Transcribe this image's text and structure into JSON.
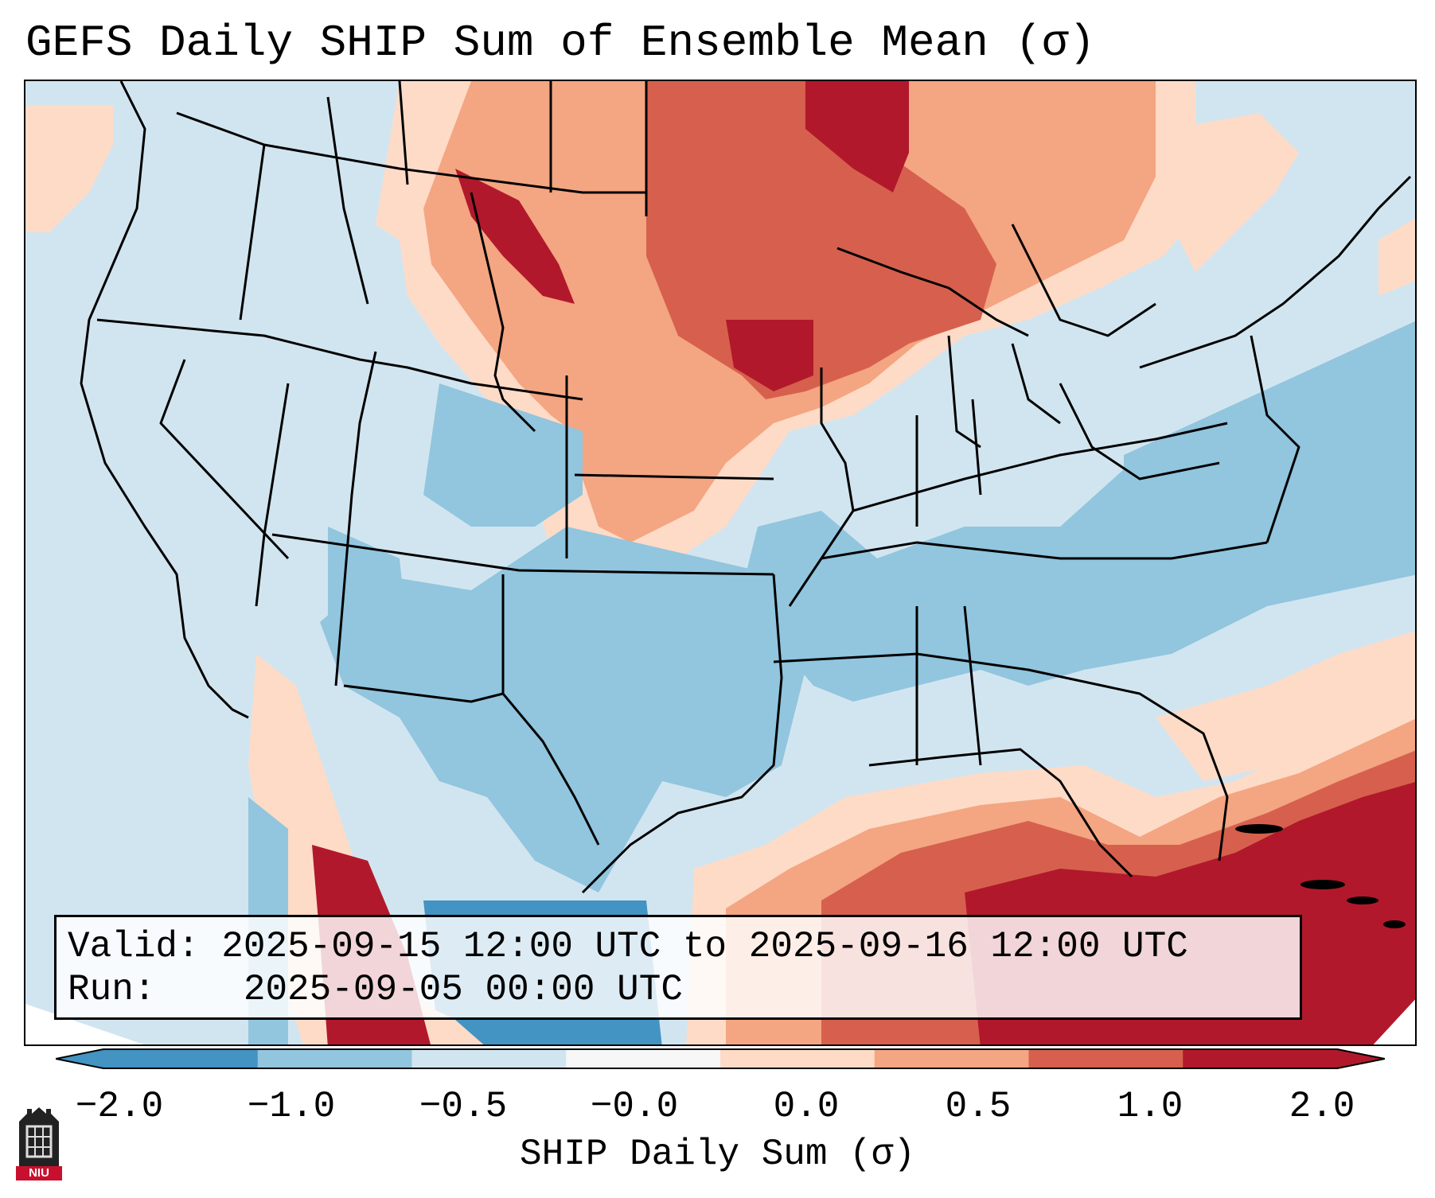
{
  "title": "GEFS Daily SHIP Sum of Ensemble Mean (σ)",
  "valid_label": "Valid:",
  "valid_value": "2025-09-15 12:00 UTC to 2025-09-16 12:00 UTC",
  "run_label": "Run:",
  "run_value": "2025-09-05 00:00 UTC",
  "colorbar": {
    "label": "SHIP Daily Sum (σ)",
    "ticks": [
      "−2.0",
      "−1.0",
      "−0.5",
      "−0.0",
      "0.0",
      "0.5",
      "1.0",
      "2.0"
    ],
    "colors": [
      "#4393c3",
      "#92c5de",
      "#d1e5f0",
      "#f7f7f7",
      "#fddbc7",
      "#f4a582",
      "#d6604d",
      "#b2182b"
    ]
  },
  "logo": {
    "text": "NIU"
  }
}
